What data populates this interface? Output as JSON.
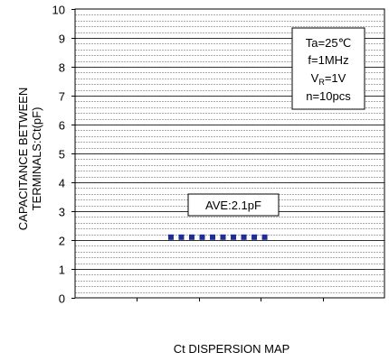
{
  "chart_data": {
    "type": "scatter",
    "xlabel": "Ct DISPERSION MAP",
    "ylabel_lines": [
      "CAPACITANCE BETWEEN",
      "TERMINALS:Ct(pF)"
    ],
    "ylim": [
      0,
      10
    ],
    "yticks": [
      "0",
      "1",
      "2",
      "3",
      "4",
      "5",
      "6",
      "7",
      "8",
      "9",
      "10"
    ],
    "grid": true,
    "minor_grid_step": 0.2,
    "x": [
      1,
      2,
      3,
      4,
      5,
      6,
      7,
      8,
      9,
      10
    ],
    "xlim": [
      -8.2,
      21.5
    ],
    "values": [
      2.1,
      2.1,
      2.1,
      2.1,
      2.1,
      2.1,
      2.1,
      2.1,
      2.1,
      2.1
    ],
    "marker_color": "#1f2f8f",
    "conditions": {
      "ta": "Ta=25℃",
      "freq": "f=1MHz",
      "vr_main": "V",
      "vr_sub": "R",
      "vr_value": "=1V",
      "n": "n=10pcs"
    },
    "average_label": "AVE:2.1pF"
  }
}
